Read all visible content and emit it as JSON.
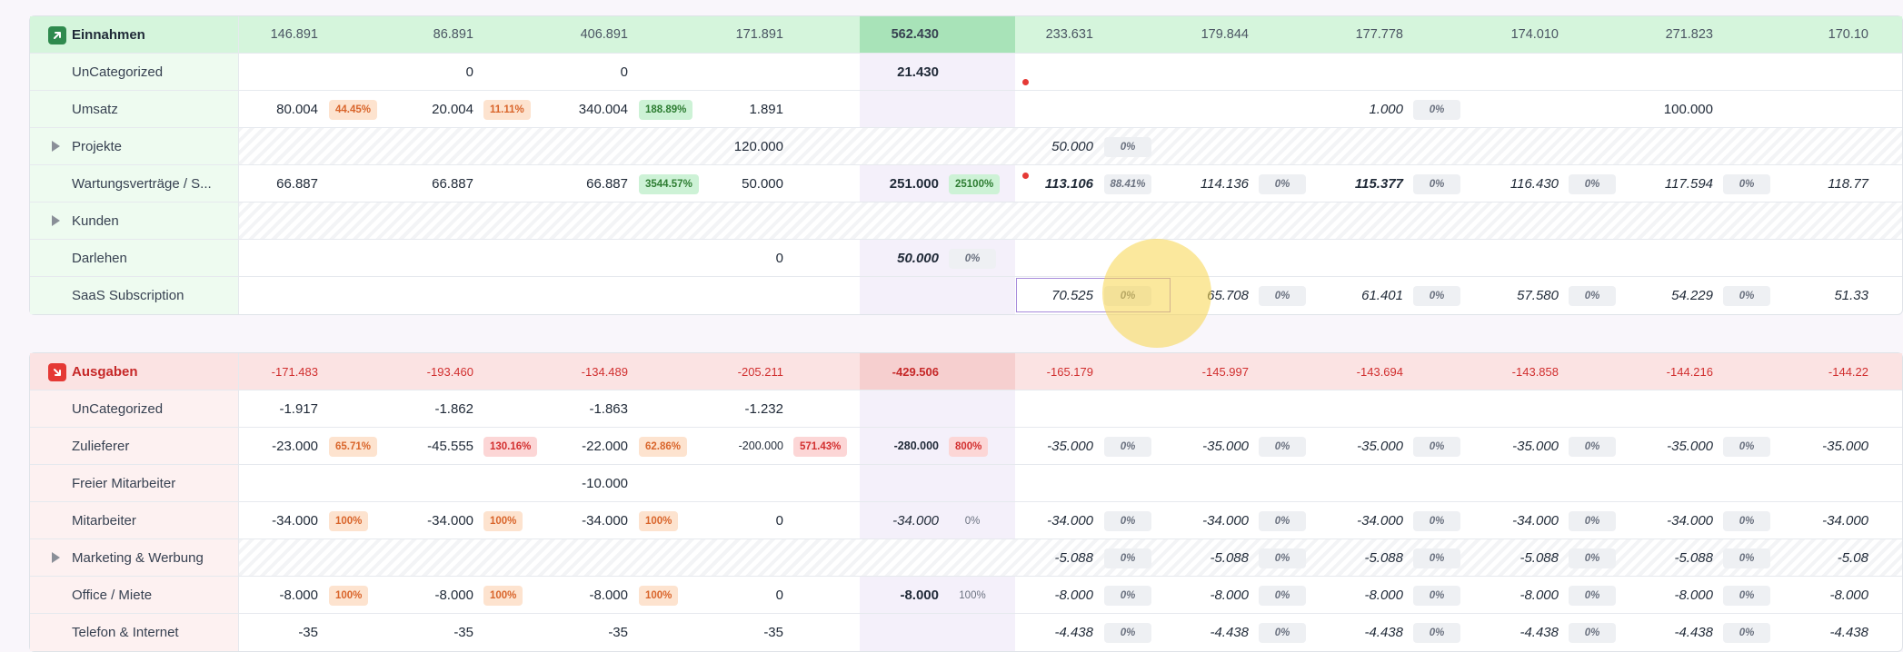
{
  "income": {
    "title": "Einnahmen",
    "icon": "arrow-up-right-icon",
    "accent": "#2f8a4e",
    "header_values": [
      "146.891",
      "86.891",
      "406.891",
      "171.891",
      "562.430",
      "233.631",
      "179.844",
      "177.778",
      "174.010",
      "271.823",
      "170.10"
    ],
    "rows": [
      {
        "label": "UnCategorized",
        "v": [
          "",
          "0",
          "0",
          "",
          "21.430",
          "",
          "",
          "",
          "",
          "",
          ""
        ]
      },
      {
        "label": "Umsatz",
        "v": [
          "80.004",
          "20.004",
          "340.004",
          "1.891",
          "",
          "",
          "",
          "1.000",
          "",
          "100.000",
          ""
        ],
        "b": [
          "44.45%",
          "11.11%",
          "188.89%",
          "",
          "",
          "",
          "",
          "0%",
          "",
          "",
          ""
        ]
      },
      {
        "label": "Projekte",
        "v": [
          "",
          "",
          "",
          "120.000",
          "",
          "50.000",
          "",
          "",
          "",
          "",
          ""
        ],
        "b": [
          "",
          "",
          "",
          "",
          "",
          "0%",
          "",
          "",
          "",
          "",
          ""
        ]
      },
      {
        "label": "Wartungsverträge / S...",
        "v": [
          "66.887",
          "66.887",
          "66.887",
          "50.000",
          "251.000",
          "113.106",
          "114.136",
          "115.377",
          "116.430",
          "117.594",
          "118.77"
        ],
        "b": [
          "",
          "",
          "3544.57%",
          "",
          "25100%",
          "88.41%",
          "0%",
          "0%",
          "0%",
          "0%",
          ""
        ]
      },
      {
        "label": "Kunden",
        "v": [
          "",
          "",
          "",
          "",
          "",
          "",
          "",
          "",
          "",
          "",
          ""
        ]
      },
      {
        "label": "Darlehen",
        "v": [
          "",
          "",
          "",
          "0",
          "50.000",
          "",
          "",
          "",
          "",
          "",
          ""
        ],
        "b": [
          "",
          "",
          "",
          "",
          "0%",
          "",
          "",
          "",
          "",
          "",
          ""
        ]
      },
      {
        "label": "SaaS Subscription",
        "v": [
          "",
          "",
          "",
          "",
          "",
          "70.525",
          "65.708",
          "61.401",
          "57.580",
          "54.229",
          "51.33"
        ],
        "b": [
          "",
          "",
          "",
          "",
          "",
          "0%",
          "0%",
          "0%",
          "0%",
          "0%",
          ""
        ]
      }
    ]
  },
  "expenses": {
    "title": "Ausgaben",
    "icon": "arrow-down-right-icon",
    "accent": "#e53935",
    "header_values": [
      "-171.483",
      "-193.460",
      "-134.489",
      "-205.211",
      "-429.506",
      "-165.179",
      "-145.997",
      "-143.694",
      "-143.858",
      "-144.216",
      "-144.22"
    ],
    "rows": [
      {
        "label": "UnCategorized",
        "v": [
          "-1.917",
          "-1.862",
          "-1.863",
          "-1.232",
          "",
          "",
          "",
          "",
          "",
          "",
          ""
        ]
      },
      {
        "label": "Zulieferer",
        "v": [
          "-23.000",
          "-45.555",
          "-22.000",
          "-200.000",
          "-280.000",
          "-35.000",
          "-35.000",
          "-35.000",
          "-35.000",
          "-35.000",
          "-35.000"
        ],
        "b": [
          "65.71%",
          "130.16%",
          "62.86%",
          "571.43%",
          "800%",
          "0%",
          "0%",
          "0%",
          "0%",
          "0%",
          ""
        ]
      },
      {
        "label": "Freier Mitarbeiter",
        "v": [
          "",
          "",
          "-10.000",
          "",
          "",
          "",
          "",
          "",
          "",
          "",
          ""
        ]
      },
      {
        "label": "Mitarbeiter",
        "v": [
          "-34.000",
          "-34.000",
          "-34.000",
          "0",
          "-34.000",
          "-34.000",
          "-34.000",
          "-34.000",
          "-34.000",
          "-34.000",
          "-34.000"
        ],
        "b": [
          "100%",
          "100%",
          "100%",
          "",
          "0%",
          "0%",
          "0%",
          "0%",
          "0%",
          "0%",
          ""
        ]
      },
      {
        "label": "Marketing & Werbung",
        "v": [
          "",
          "",
          "",
          "",
          "",
          "-5.088",
          "-5.088",
          "-5.088",
          "-5.088",
          "-5.088",
          "-5.08"
        ],
        "b": [
          "",
          "",
          "",
          "",
          "",
          "0%",
          "0%",
          "0%",
          "0%",
          "0%",
          ""
        ]
      },
      {
        "label": "Office / Miete",
        "v": [
          "-8.000",
          "-8.000",
          "-8.000",
          "0",
          "-8.000",
          "-8.000",
          "-8.000",
          "-8.000",
          "-8.000",
          "-8.000",
          "-8.000"
        ],
        "b": [
          "100%",
          "100%",
          "100%",
          "",
          "100%",
          "0%",
          "0%",
          "0%",
          "0%",
          "0%",
          ""
        ]
      },
      {
        "label": "Telefon & Internet",
        "v": [
          "-35",
          "-35",
          "-35",
          "-35",
          "",
          "-4.438",
          "-4.438",
          "-4.438",
          "-4.438",
          "-4.438",
          "-4.438"
        ],
        "b": [
          "",
          "",
          "",
          "",
          "",
          "0%",
          "0%",
          "0%",
          "0%",
          "0%",
          ""
        ]
      }
    ]
  }
}
